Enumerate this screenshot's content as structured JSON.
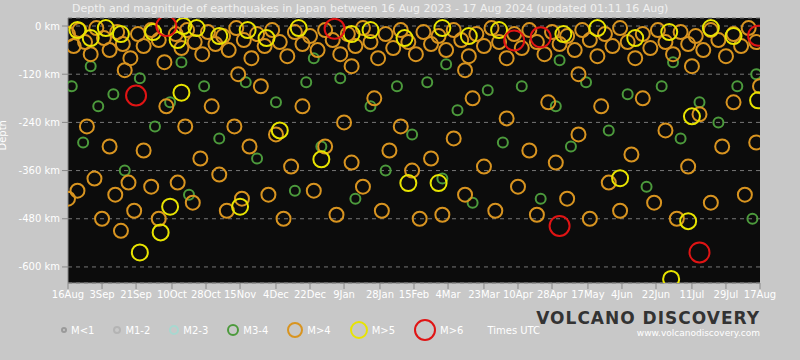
{
  "chart_data": {
    "type": "scatter",
    "title": "Depth and magnitude of earthquakes in Japan between 16 Aug 2023 - 17 Aug 2024 (updated 01:11 16 Aug)",
    "y_label": "Depth",
    "note": "Times UTC",
    "brand": "VOLCANO DISCOVERY",
    "website": "www.volcanodiscovery.com",
    "grid": true,
    "marker": "circle",
    "xlim": [
      0,
      366
    ],
    "xticks": [
      {
        "value": 0,
        "label": "16Aug"
      },
      {
        "value": 18,
        "label": "3Sep"
      },
      {
        "value": 36,
        "label": "21Sep"
      },
      {
        "value": 55,
        "label": "10Oct"
      },
      {
        "value": 73,
        "label": "28Oct"
      },
      {
        "value": 91,
        "label": "15Nov"
      },
      {
        "value": 110,
        "label": "4Dec"
      },
      {
        "value": 128,
        "label": "22Dec"
      },
      {
        "value": 146,
        "label": "9Jan"
      },
      {
        "value": 165,
        "label": "28Jan"
      },
      {
        "value": 183,
        "label": "15Feb"
      },
      {
        "value": 201,
        "label": "4Mar"
      },
      {
        "value": 220,
        "label": "23Mar"
      },
      {
        "value": 238,
        "label": "10Apr"
      },
      {
        "value": 256,
        "label": "28Apr"
      },
      {
        "value": 275,
        "label": "17May"
      },
      {
        "value": 293,
        "label": "4Jun"
      },
      {
        "value": 311,
        "label": "22Jun"
      },
      {
        "value": 330,
        "label": "11Jul"
      },
      {
        "value": 348,
        "label": "29Jul"
      },
      {
        "value": 366,
        "label": "17Aug"
      }
    ],
    "ylim": [
      -640,
      20
    ],
    "yticks": [
      {
        "value": 0,
        "label": "0 km"
      },
      {
        "value": -120,
        "label": "-120 km"
      },
      {
        "value": -240,
        "label": "-240 km"
      },
      {
        "value": -360,
        "label": "-360 km"
      },
      {
        "value": -480,
        "label": "-480 km"
      },
      {
        "value": -600,
        "label": "-600 km"
      }
    ],
    "series": [
      {
        "name": "M<1",
        "color": "#9a9a9a",
        "values": []
      },
      {
        "name": "M1-2",
        "color": "#b4b4b4",
        "values": []
      },
      {
        "name": "M2-3",
        "color": "#a8d8d0",
        "values": []
      },
      {
        "name": "M3-4",
        "color": "#4c9a3c",
        "values": [
          [
            2,
            -150
          ],
          [
            8,
            -290
          ],
          [
            16,
            -200
          ],
          [
            24,
            -170
          ],
          [
            30,
            -360
          ],
          [
            38,
            -130
          ],
          [
            46,
            -250
          ],
          [
            54,
            -190
          ],
          [
            64,
            -420
          ],
          [
            72,
            -150
          ],
          [
            80,
            -280
          ],
          [
            94,
            -140
          ],
          [
            100,
            -330
          ],
          [
            110,
            -190
          ],
          [
            120,
            -410
          ],
          [
            126,
            -140
          ],
          [
            134,
            -300
          ],
          [
            144,
            -130
          ],
          [
            152,
            -430
          ],
          [
            160,
            -200
          ],
          [
            168,
            -360
          ],
          [
            174,
            -150
          ],
          [
            182,
            -270
          ],
          [
            190,
            -140
          ],
          [
            198,
            -380
          ],
          [
            206,
            -210
          ],
          [
            214,
            -440
          ],
          [
            222,
            -160
          ],
          [
            230,
            -290
          ],
          [
            240,
            -150
          ],
          [
            250,
            -430
          ],
          [
            258,
            -200
          ],
          [
            266,
            -300
          ],
          [
            274,
            -140
          ],
          [
            286,
            -260
          ],
          [
            296,
            -170
          ],
          [
            306,
            -400
          ],
          [
            314,
            -150
          ],
          [
            324,
            -280
          ],
          [
            334,
            -190
          ],
          [
            344,
            -240
          ],
          [
            354,
            -150
          ],
          [
            362,
            -480
          ],
          [
            364,
            -120
          ],
          [
            12,
            -100
          ],
          [
            60,
            -90
          ],
          [
            130,
            -80
          ],
          [
            200,
            -95
          ],
          [
            260,
            -85
          ],
          [
            320,
            -90
          ]
        ]
      },
      {
        "name": "M>4",
        "color": "#d89420",
        "values": [
          [
            0,
            -20
          ],
          [
            3,
            -50
          ],
          [
            6,
            -10
          ],
          [
            9,
            -40
          ],
          [
            12,
            -70
          ],
          [
            15,
            -5
          ],
          [
            19,
            -30
          ],
          [
            22,
            -60
          ],
          [
            26,
            -15
          ],
          [
            29,
            -45
          ],
          [
            33,
            -80
          ],
          [
            37,
            -20
          ],
          [
            40,
            -50
          ],
          [
            44,
            -10
          ],
          [
            48,
            -35
          ],
          [
            51,
            -90
          ],
          [
            57,
            -20
          ],
          [
            60,
            -55
          ],
          [
            63,
            -10
          ],
          [
            67,
            -40
          ],
          [
            71,
            -70
          ],
          [
            74,
            -15
          ],
          [
            78,
            -45
          ],
          [
            82,
            -25
          ],
          [
            85,
            -60
          ],
          [
            89,
            -5
          ],
          [
            93,
            -35
          ],
          [
            97,
            -80
          ],
          [
            100,
            -20
          ],
          [
            104,
            -50
          ],
          [
            108,
            -10
          ],
          [
            112,
            -40
          ],
          [
            116,
            -75
          ],
          [
            120,
            -15
          ],
          [
            124,
            -45
          ],
          [
            128,
            -25
          ],
          [
            132,
            -60
          ],
          [
            136,
            -10
          ],
          [
            140,
            -35
          ],
          [
            144,
            -70
          ],
          [
            148,
            -20
          ],
          [
            152,
            -50
          ],
          [
            156,
            -5
          ],
          [
            160,
            -40
          ],
          [
            164,
            -80
          ],
          [
            168,
            -20
          ],
          [
            172,
            -55
          ],
          [
            176,
            -10
          ],
          [
            180,
            -40
          ],
          [
            184,
            -70
          ],
          [
            188,
            -15
          ],
          [
            192,
            -45
          ],
          [
            196,
            -25
          ],
          [
            200,
            -60
          ],
          [
            204,
            -10
          ],
          [
            208,
            -35
          ],
          [
            212,
            -75
          ],
          [
            216,
            -20
          ],
          [
            220,
            -50
          ],
          [
            224,
            -5
          ],
          [
            228,
            -40
          ],
          [
            232,
            -80
          ],
          [
            236,
            -20
          ],
          [
            240,
            -55
          ],
          [
            244,
            -10
          ],
          [
            248,
            -40
          ],
          [
            252,
            -70
          ],
          [
            256,
            -15
          ],
          [
            260,
            -45
          ],
          [
            264,
            -25
          ],
          [
            268,
            -60
          ],
          [
            272,
            -10
          ],
          [
            276,
            -35
          ],
          [
            280,
            -75
          ],
          [
            284,
            -20
          ],
          [
            288,
            -50
          ],
          [
            292,
            -5
          ],
          [
            296,
            -40
          ],
          [
            300,
            -80
          ],
          [
            304,
            -20
          ],
          [
            308,
            -55
          ],
          [
            312,
            -10
          ],
          [
            316,
            -40
          ],
          [
            320,
            -70
          ],
          [
            324,
            -15
          ],
          [
            328,
            -45
          ],
          [
            332,
            -25
          ],
          [
            336,
            -60
          ],
          [
            340,
            -10
          ],
          [
            344,
            -35
          ],
          [
            348,
            -75
          ],
          [
            352,
            -20
          ],
          [
            356,
            -50
          ],
          [
            360,
            -5
          ],
          [
            364,
            -40
          ],
          [
            0,
            -430
          ],
          [
            5,
            -410
          ],
          [
            10,
            -250
          ],
          [
            14,
            -380
          ],
          [
            18,
            -480
          ],
          [
            22,
            -300
          ],
          [
            25,
            -420
          ],
          [
            28,
            -510
          ],
          [
            32,
            -390
          ],
          [
            35,
            -460
          ],
          [
            40,
            -310
          ],
          [
            44,
            -400
          ],
          [
            48,
            -480
          ],
          [
            52,
            -200
          ],
          [
            58,
            -390
          ],
          [
            62,
            -250
          ],
          [
            66,
            -440
          ],
          [
            70,
            -330
          ],
          [
            76,
            -200
          ],
          [
            80,
            -370
          ],
          [
            84,
            -460
          ],
          [
            88,
            -250
          ],
          [
            92,
            -430
          ],
          [
            96,
            -300
          ],
          [
            102,
            -150
          ],
          [
            106,
            -420
          ],
          [
            110,
            -270
          ],
          [
            114,
            -480
          ],
          [
            118,
            -350
          ],
          [
            124,
            -200
          ],
          [
            130,
            -410
          ],
          [
            136,
            -300
          ],
          [
            142,
            -470
          ],
          [
            146,
            -240
          ],
          [
            150,
            -340
          ],
          [
            156,
            -400
          ],
          [
            162,
            -180
          ],
          [
            166,
            -460
          ],
          [
            170,
            -310
          ],
          [
            176,
            -250
          ],
          [
            182,
            -360
          ],
          [
            186,
            -480
          ],
          [
            192,
            -330
          ],
          [
            198,
            -470
          ],
          [
            204,
            -280
          ],
          [
            210,
            -420
          ],
          [
            214,
            -180
          ],
          [
            220,
            -350
          ],
          [
            226,
            -460
          ],
          [
            232,
            -230
          ],
          [
            238,
            -400
          ],
          [
            244,
            -310
          ],
          [
            248,
            -470
          ],
          [
            254,
            -190
          ],
          [
            258,
            -340
          ],
          [
            264,
            -430
          ],
          [
            270,
            -270
          ],
          [
            276,
            -480
          ],
          [
            282,
            -200
          ],
          [
            286,
            -390
          ],
          [
            292,
            -460
          ],
          [
            298,
            -320
          ],
          [
            304,
            -180
          ],
          [
            310,
            -440
          ],
          [
            316,
            -260
          ],
          [
            322,
            -480
          ],
          [
            328,
            -350
          ],
          [
            334,
            -220
          ],
          [
            340,
            -440
          ],
          [
            346,
            -300
          ],
          [
            352,
            -190
          ],
          [
            358,
            -420
          ],
          [
            364,
            -290
          ],
          [
            366,
            -150
          ],
          [
            30,
            -110
          ],
          [
            90,
            -120
          ],
          [
            150,
            -100
          ],
          [
            210,
            -110
          ],
          [
            270,
            -120
          ],
          [
            330,
            -100
          ]
        ]
      },
      {
        "name": "M>5",
        "color": "#e8e400",
        "values": [
          [
            38,
            -564
          ],
          [
            49,
            -514
          ],
          [
            54,
            -450
          ],
          [
            61,
            0
          ],
          [
            60,
            -166
          ],
          [
            91,
            -450
          ],
          [
            112,
            -260
          ],
          [
            134,
            -332
          ],
          [
            180,
            -391
          ],
          [
            196,
            -391
          ],
          [
            292,
            -379
          ],
          [
            328,
            -486
          ],
          [
            330,
            -225
          ],
          [
            319,
            -630
          ],
          [
            365,
            -185
          ],
          [
            5,
            -10
          ],
          [
            12,
            -30
          ],
          [
            20,
            -5
          ],
          [
            28,
            -20
          ],
          [
            45,
            -15
          ],
          [
            58,
            -35
          ],
          [
            68,
            -5
          ],
          [
            80,
            -25
          ],
          [
            95,
            -10
          ],
          [
            105,
            -30
          ],
          [
            122,
            -5
          ],
          [
            150,
            -20
          ],
          [
            160,
            -10
          ],
          [
            178,
            -30
          ],
          [
            198,
            -5
          ],
          [
            212,
            -25
          ],
          [
            228,
            -10
          ],
          [
            262,
            -20
          ],
          [
            280,
            -5
          ],
          [
            300,
            -30
          ],
          [
            318,
            -15
          ],
          [
            340,
            -5
          ],
          [
            352,
            -25
          ]
        ]
      },
      {
        "name": "M>6",
        "color": "#e01414",
        "values": [
          [
            52,
            0
          ],
          [
            36,
            -173
          ],
          [
            141,
            -7
          ],
          [
            236,
            -36
          ],
          [
            250,
            -28
          ],
          [
            260,
            -498
          ],
          [
            334,
            -564
          ],
          [
            365,
            -24
          ]
        ]
      }
    ]
  }
}
